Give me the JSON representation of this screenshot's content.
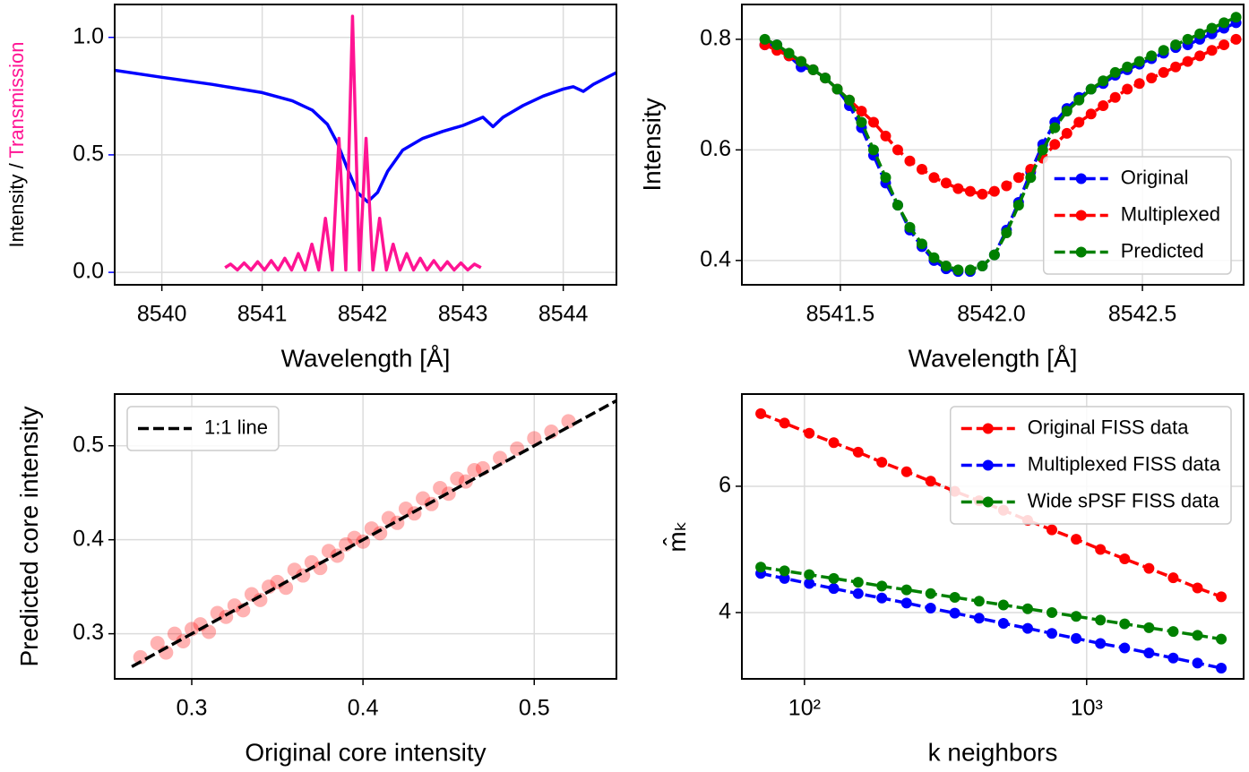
{
  "chart_data": [
    {
      "type": "line",
      "xlabel": "Wavelength [Å]",
      "ylabel": [
        {
          "text": "Intensity / ",
          "color": "#000000"
        },
        {
          "text": "Transmission",
          "color": "#ff1493"
        }
      ],
      "xlim": [
        8539.53,
        8544.53
      ],
      "ylim": [
        -0.053,
        1.14
      ],
      "xticks": [
        8540,
        8541,
        8542,
        8543,
        8544
      ],
      "yticks": [
        {
          "value": 0,
          "label": "0.0"
        },
        0.5,
        {
          "value": 1,
          "label": "1.0"
        }
      ],
      "ytick_color": "#0000ff",
      "grid": true,
      "series": [
        {
          "color": "#0000ff",
          "line": "solid",
          "x": [
            8539.53,
            8540,
            8540.5,
            8541,
            8541.3,
            8541.5,
            8541.65,
            8541.75,
            8541.85,
            8541.95,
            8542.05,
            8542.15,
            8542.25,
            8542.4,
            8542.6,
            8542.8,
            8543,
            8543.2,
            8543.3,
            8543.4,
            8543.6,
            8543.8,
            8544,
            8544.1,
            8544.2,
            8544.3,
            8544.53
          ],
          "values": [
            0.86,
            0.83,
            0.8,
            0.765,
            0.73,
            0.69,
            0.63,
            0.55,
            0.44,
            0.34,
            0.3,
            0.34,
            0.43,
            0.52,
            0.57,
            0.6,
            0.625,
            0.66,
            0.62,
            0.66,
            0.71,
            0.75,
            0.78,
            0.79,
            0.77,
            0.8,
            0.85
          ]
        },
        {
          "color": "#ff1493",
          "line": "solid",
          "x": [
            8540.63,
            8540.685,
            8540.753,
            8540.82,
            8540.888,
            8540.955,
            8541.023,
            8541.09,
            8541.158,
            8541.225,
            8541.293,
            8541.36,
            8541.428,
            8541.495,
            8541.563,
            8541.63,
            8541.698,
            8541.765,
            8541.833,
            8541.9,
            8541.968,
            8542.035,
            8542.103,
            8542.17,
            8542.238,
            8542.305,
            8542.373,
            8542.44,
            8542.508,
            8542.575,
            8542.643,
            8542.71,
            8542.778,
            8542.845,
            8542.913,
            8542.98,
            8543.048,
            8543.115,
            8543.18
          ],
          "values": [
            0.02,
            0.035,
            0.01,
            0.04,
            0.01,
            0.045,
            0.01,
            0.05,
            0.01,
            0.06,
            0.01,
            0.08,
            0.01,
            0.12,
            0.01,
            0.23,
            0.01,
            0.57,
            0.01,
            1.09,
            0.01,
            0.57,
            0.01,
            0.23,
            0.01,
            0.12,
            0.01,
            0.08,
            0.01,
            0.06,
            0.01,
            0.05,
            0.01,
            0.045,
            0.01,
            0.04,
            0.01,
            0.035,
            0.02
          ]
        }
      ]
    },
    {
      "type": "line",
      "xlabel": "Wavelength [Å]",
      "ylabel": [
        {
          "text": "Intensity",
          "color": "#000000"
        }
      ],
      "xlim": [
        8541.174,
        8542.835
      ],
      "ylim": [
        0.356,
        0.863
      ],
      "xticks": [
        8541.5,
        {
          "value": 8542,
          "label": "8542.0"
        },
        8542.5
      ],
      "yticks": [
        0.4,
        0.6,
        0.8
      ],
      "grid": true,
      "legend": "lower right",
      "x": [
        8541.25,
        8541.29,
        8541.33,
        8541.37,
        8541.41,
        8541.45,
        8541.49,
        8541.53,
        8541.57,
        8541.61,
        8541.65,
        8541.69,
        8541.73,
        8541.77,
        8541.81,
        8541.85,
        8541.89,
        8541.93,
        8541.97,
        8542.01,
        8542.05,
        8542.09,
        8542.13,
        8542.17,
        8542.21,
        8542.25,
        8542.29,
        8542.33,
        8542.37,
        8542.41,
        8542.45,
        8542.49,
        8542.53,
        8542.57,
        8542.61,
        8542.65,
        8542.69,
        8542.73,
        8542.77,
        8542.81
      ],
      "series": [
        {
          "name": "Original",
          "color": "#0000ff",
          "line": "dashed",
          "marker": "o",
          "values": [
            0.79,
            0.79,
            0.77,
            0.75,
            0.745,
            0.73,
            0.71,
            0.68,
            0.64,
            0.59,
            0.54,
            0.5,
            0.455,
            0.425,
            0.4,
            0.385,
            0.38,
            0.38,
            0.39,
            0.41,
            0.455,
            0.505,
            0.56,
            0.61,
            0.65,
            0.675,
            0.695,
            0.71,
            0.72,
            0.735,
            0.745,
            0.755,
            0.765,
            0.775,
            0.785,
            0.79,
            0.8,
            0.81,
            0.82,
            0.83
          ]
        },
        {
          "name": "Multiplexed",
          "color": "#ff0000",
          "line": "dashed",
          "marker": "o",
          "values": [
            0.79,
            0.78,
            0.77,
            0.76,
            0.745,
            0.73,
            0.71,
            0.69,
            0.67,
            0.65,
            0.625,
            0.6,
            0.58,
            0.565,
            0.55,
            0.54,
            0.53,
            0.525,
            0.52,
            0.525,
            0.535,
            0.55,
            0.565,
            0.585,
            0.61,
            0.63,
            0.65,
            0.665,
            0.68,
            0.695,
            0.71,
            0.72,
            0.73,
            0.74,
            0.75,
            0.76,
            0.77,
            0.78,
            0.79,
            0.8
          ]
        },
        {
          "name": "Predicted",
          "color": "#008000",
          "line": "dashed",
          "marker": "o",
          "values": [
            0.8,
            0.79,
            0.775,
            0.76,
            0.745,
            0.73,
            0.71,
            0.69,
            0.65,
            0.6,
            0.55,
            0.5,
            0.46,
            0.43,
            0.405,
            0.39,
            0.383,
            0.383,
            0.39,
            0.41,
            0.45,
            0.5,
            0.55,
            0.6,
            0.64,
            0.67,
            0.69,
            0.71,
            0.725,
            0.74,
            0.75,
            0.76,
            0.77,
            0.78,
            0.79,
            0.8,
            0.81,
            0.82,
            0.83,
            0.84
          ]
        }
      ]
    },
    {
      "type": "scatter",
      "xlabel": "Original core intensity",
      "ylabel": [
        {
          "text": "Predicted core intensity",
          "color": "#000000"
        }
      ],
      "xlim": [
        0.255,
        0.548
      ],
      "ylim": [
        0.252,
        0.555
      ],
      "xticks": [
        0.3,
        0.4,
        0.5
      ],
      "yticks": [
        0.3,
        0.4,
        0.5
      ],
      "grid": true,
      "legend": "upper left",
      "series": [
        {
          "color": "#ff0000",
          "mode": "markers",
          "opacity": 0.3,
          "x": [
            0.27,
            0.28,
            0.285,
            0.29,
            0.295,
            0.3,
            0.305,
            0.31,
            0.315,
            0.32,
            0.325,
            0.33,
            0.335,
            0.34,
            0.345,
            0.35,
            0.355,
            0.36,
            0.365,
            0.37,
            0.375,
            0.38,
            0.385,
            0.39,
            0.395,
            0.4,
            0.405,
            0.41,
            0.415,
            0.42,
            0.425,
            0.43,
            0.435,
            0.44,
            0.445,
            0.45,
            0.455,
            0.46,
            0.465,
            0.47,
            0.48,
            0.49,
            0.5,
            0.51,
            0.52
          ],
          "values": [
            0.275,
            0.29,
            0.28,
            0.3,
            0.292,
            0.305,
            0.31,
            0.302,
            0.322,
            0.318,
            0.33,
            0.325,
            0.342,
            0.336,
            0.35,
            0.355,
            0.349,
            0.368,
            0.362,
            0.376,
            0.37,
            0.388,
            0.383,
            0.395,
            0.402,
            0.398,
            0.412,
            0.407,
            0.423,
            0.418,
            0.433,
            0.428,
            0.444,
            0.438,
            0.455,
            0.449,
            0.465,
            0.462,
            0.474,
            0.476,
            0.487,
            0.497,
            0.508,
            0.515,
            0.526
          ]
        },
        {
          "name": "1:1 line",
          "color": "#000000",
          "mode": "lines",
          "line": "dashed",
          "x": [
            0.265,
            0.548
          ],
          "values": [
            0.265,
            0.548
          ]
        }
      ]
    },
    {
      "type": "line",
      "xscale": "log",
      "xlabel": "k neighbors",
      "ylabel": [
        {
          "text": "m̂ₖ",
          "color": "#000000"
        }
      ],
      "xlim": [
        60,
        3600
      ],
      "ylim": [
        2.95,
        7.46
      ],
      "xticks": [
        {
          "value": 100,
          "label": "10²"
        },
        {
          "value": 1000,
          "label": "10³"
        }
      ],
      "yticks": [
        4,
        6
      ],
      "grid": true,
      "legend": "upper right",
      "x": [
        70,
        85,
        104,
        127,
        155,
        188,
        230,
        280,
        341,
        416,
        507,
        618,
        753,
        918,
        1119,
        1364,
        1663,
        2027,
        2471,
        3000
      ],
      "series": [
        {
          "name": "Original FISS data",
          "color": "#ff0000",
          "line": "dashed",
          "marker": "o",
          "values": [
            7.15,
            7.0,
            6.84,
            6.69,
            6.54,
            6.38,
            6.23,
            6.08,
            5.92,
            5.77,
            5.62,
            5.46,
            5.31,
            5.16,
            5.0,
            4.85,
            4.7,
            4.55,
            4.39,
            4.25
          ]
        },
        {
          "name": "Multiplexed FISS data",
          "color": "#0000ff",
          "line": "dashed",
          "marker": "o",
          "values": [
            4.62,
            4.54,
            4.46,
            4.38,
            4.3,
            4.23,
            4.15,
            4.07,
            3.99,
            3.91,
            3.83,
            3.75,
            3.67,
            3.59,
            3.51,
            3.44,
            3.36,
            3.28,
            3.2,
            3.12
          ]
        },
        {
          "name": "Wide sPSF FISS data",
          "color": "#008000",
          "line": "dashed",
          "marker": "o",
          "values": [
            4.72,
            4.66,
            4.6,
            4.54,
            4.48,
            4.42,
            4.36,
            4.3,
            4.24,
            4.18,
            4.12,
            4.06,
            4.0,
            3.94,
            3.88,
            3.82,
            3.76,
            3.7,
            3.64,
            3.58
          ]
        }
      ]
    }
  ]
}
